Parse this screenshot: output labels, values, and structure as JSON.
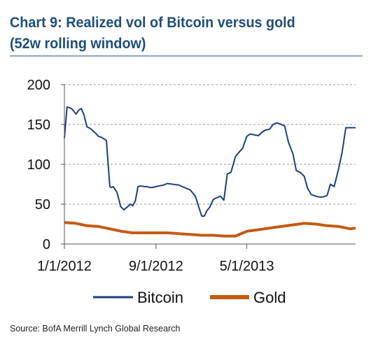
{
  "header": {
    "title_line1": "Chart 9: Realized vol of Bitcoin versus gold",
    "title_line2": "(52w rolling window)"
  },
  "footer": {
    "source": "Source: BofA Merrill Lynch Global Research"
  },
  "chart_data": {
    "type": "line",
    "title": "Chart 9: Realized vol of Bitcoin versus gold (52w rolling window)",
    "xlabel": "",
    "ylabel": "",
    "ylim": [
      0,
      200
    ],
    "yticks": [
      0,
      50,
      100,
      150,
      200
    ],
    "xtick_labels": [
      "1/1/2012",
      "9/1/2012",
      "5/1/2013"
    ],
    "x_range": [
      "1/1/2012",
      "2/15/2014"
    ],
    "grid": "horizontal dashed",
    "legend_position": "bottom",
    "colors": {
      "Bitcoin": "#1f3f7a",
      "Gold": "#c55a11"
    },
    "series": [
      {
        "name": "Bitcoin",
        "x": [
          "1/1/2012",
          "1/8/2012",
          "1/15/2012",
          "1/22/2012",
          "2/1/2012",
          "2/8/2012",
          "2/15/2012",
          "2/22/2012",
          "3/1/2012",
          "3/10/2012",
          "3/22/2012",
          "4/1/2012",
          "4/8/2012",
          "4/15/2012",
          "4/22/2012",
          "5/1/2012",
          "5/5/2012",
          "5/10/2012",
          "5/20/2012",
          "5/30/2012",
          "6/8/2012",
          "6/15/2012",
          "6/25/2012",
          "7/1/2012",
          "7/8/2012",
          "7/15/2012",
          "7/22/2012",
          "8/1/2012",
          "8/8/2012",
          "8/15/2012",
          "8/22/2012",
          "9/1/2012",
          "9/10/2012",
          "9/22/2012",
          "10/1/2012",
          "10/15/2012",
          "11/1/2012",
          "11/15/2012",
          "12/1/2012",
          "12/15/2012",
          "12/25/2012",
          "1/1/2013",
          "1/8/2013",
          "1/15/2013",
          "1/22/2013",
          "2/1/2013",
          "2/10/2013",
          "2/20/2013",
          "3/1/2013",
          "3/10/2013",
          "3/20/2013",
          "4/1/2013",
          "4/10/2013",
          "4/20/2013",
          "5/1/2013",
          "5/10/2013",
          "5/20/2013",
          "6/1/2013",
          "6/10/2013",
          "6/20/2013",
          "7/1/2013",
          "7/10/2013",
          "7/20/2013",
          "8/1/2013",
          "8/10/2013",
          "8/20/2013",
          "9/1/2013",
          "9/10/2013",
          "9/20/2013",
          "10/1/2013",
          "10/10/2013",
          "10/20/2013",
          "11/1/2013",
          "11/10/2013",
          "11/20/2013",
          "12/1/2013",
          "12/10/2013",
          "12/20/2013",
          "1/1/2014",
          "1/10/2014",
          "1/20/2014",
          "2/1/2014",
          "2/10/2014",
          "2/15/2014"
        ],
        "values": [
          133,
          172,
          171,
          169,
          163,
          168,
          170,
          162,
          147,
          145,
          140,
          135,
          134,
          132,
          130,
          72,
          71,
          72,
          65,
          47,
          43,
          46,
          50,
          48,
          54,
          72,
          73,
          72,
          72,
          71,
          71,
          72,
          73,
          74,
          76,
          75,
          74,
          71,
          68,
          60,
          45,
          35,
          35,
          42,
          46,
          56,
          58,
          60,
          55,
          88,
          90,
          110,
          115,
          120,
          135,
          138,
          137,
          136,
          140,
          143,
          144,
          150,
          152,
          150,
          148,
          128,
          113,
          92,
          90,
          85,
          70,
          62,
          60,
          59,
          59,
          61,
          75,
          72,
          95,
          115,
          146,
          146,
          146,
          146
        ]
      },
      {
        "name": "Gold",
        "x": [
          "1/1/2012",
          "2/1/2012",
          "3/1/2012",
          "4/1/2012",
          "5/1/2012",
          "6/1/2012",
          "7/1/2012",
          "8/1/2012",
          "9/1/2012",
          "10/1/2012",
          "11/1/2012",
          "12/1/2012",
          "1/1/2013",
          "2/1/2013",
          "3/1/2013",
          "4/1/2013",
          "5/1/2013",
          "6/1/2013",
          "7/1/2013",
          "8/1/2013",
          "9/1/2013",
          "10/1/2013",
          "11/1/2013",
          "12/1/2013",
          "1/1/2014",
          "2/1/2014",
          "2/15/2014"
        ],
        "values": [
          27,
          26,
          23,
          22,
          19,
          16,
          14,
          14,
          14,
          14,
          13,
          12,
          11,
          11,
          10,
          10,
          16,
          18,
          20,
          22,
          24,
          26,
          25,
          23,
          22,
          19,
          20
        ]
      }
    ]
  }
}
